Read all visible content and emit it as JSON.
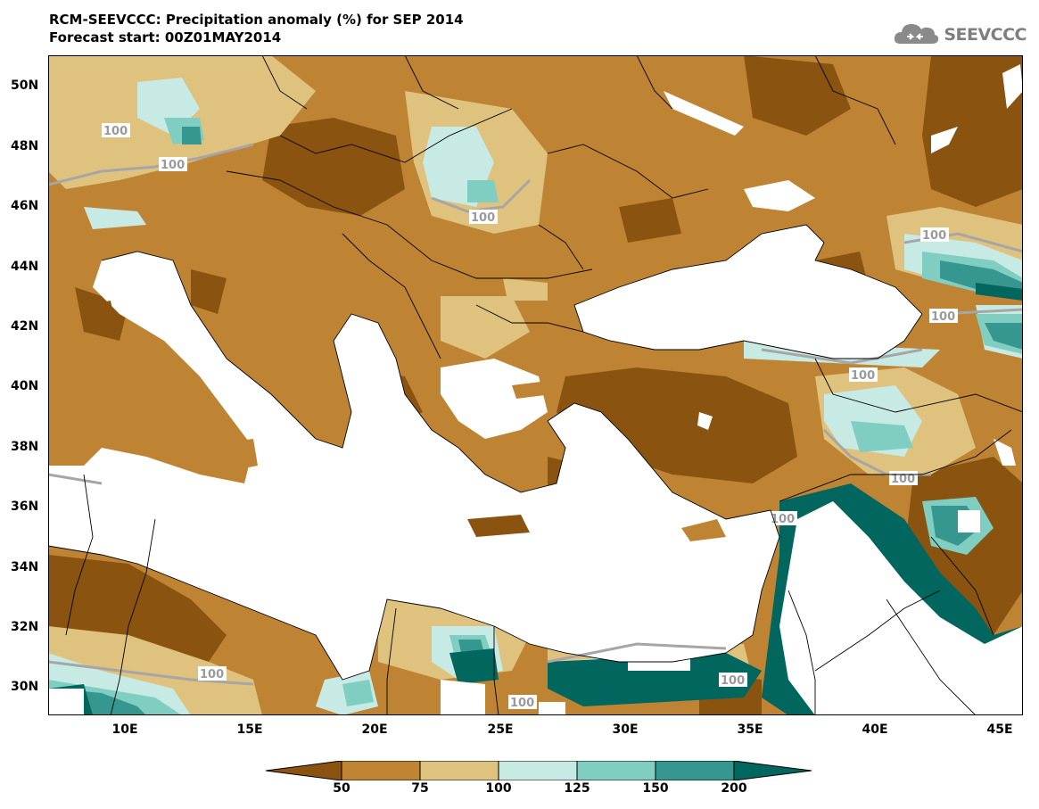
{
  "title": {
    "line1": "RCM-SEEVCCC: Precipitation anomaly (%) for SEP 2014",
    "line2": "Forecast start: 00Z01MAY2014"
  },
  "logo": {
    "text": "SEEVCCC",
    "icon": "cloud-icon"
  },
  "map": {
    "lat_ticks": [
      "50N",
      "48N",
      "46N",
      "44N",
      "42N",
      "40N",
      "38N",
      "36N",
      "34N",
      "32N",
      "30N"
    ],
    "lon_ticks": [
      "10E",
      "15E",
      "20E",
      "25E",
      "30E",
      "35E",
      "40E",
      "45E"
    ],
    "contour_label": "100",
    "colors": {
      "lt50": "#8a5410",
      "50_75": "#bf8433",
      "75_100": "#dfc27d",
      "100_125": "#c7eae4",
      "125_150": "#80cdc1",
      "150_200": "#35978f",
      "gt200": "#01665e",
      "water": "#ffffff",
      "contour": "#a6a6a6"
    }
  },
  "colorbar": {
    "labels": [
      "50",
      "75",
      "100",
      "125",
      "150",
      "200"
    ],
    "colors": [
      "#8a5410",
      "#bf8433",
      "#dfc27d",
      "#c7eae4",
      "#80cdc1",
      "#35978f",
      "#01665e"
    ]
  }
}
